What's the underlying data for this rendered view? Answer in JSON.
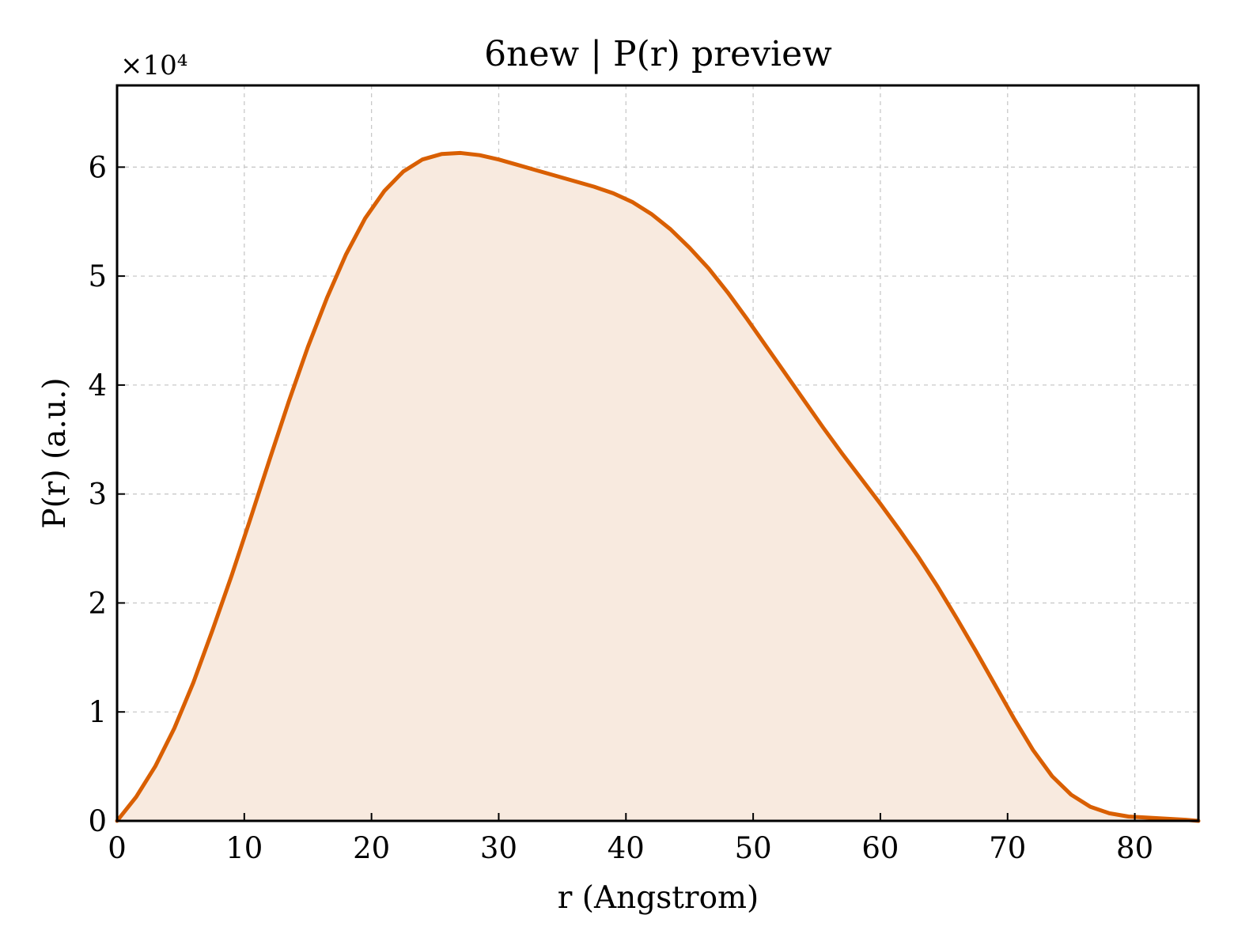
{
  "chart_data": {
    "type": "area",
    "title": "6new | P(r) preview",
    "xlabel": "r (Angstrom)",
    "ylabel": "P(r) (a.u.)",
    "y_exponent_label": "×10⁴",
    "xlim": [
      0,
      85
    ],
    "ylim": [
      0,
      67500
    ],
    "xticks": [
      0,
      10,
      20,
      30,
      40,
      50,
      60,
      70,
      80
    ],
    "yticks": [
      0,
      10000,
      20000,
      30000,
      40000,
      50000,
      60000
    ],
    "ytick_labels": [
      "0",
      "1",
      "2",
      "3",
      "4",
      "5",
      "6"
    ],
    "grid": true,
    "series": [
      {
        "color": "#d95f02",
        "fill_color": "#f8eadf",
        "x": [
          0,
          1.5,
          3,
          4.5,
          6,
          7.5,
          9,
          10.5,
          12,
          13.5,
          15,
          16.5,
          18,
          19.5,
          21,
          22.5,
          24,
          25.5,
          27,
          28.5,
          30,
          31.5,
          33,
          34.5,
          36,
          37.5,
          39,
          40.5,
          42,
          43.5,
          45,
          46.5,
          48,
          49.5,
          51,
          52.5,
          54,
          55.5,
          57,
          58.5,
          60,
          61.5,
          63,
          64.5,
          66,
          67.5,
          69,
          70.5,
          72,
          73.5,
          75,
          76.5,
          78,
          79.5,
          81,
          82.5,
          84,
          85
        ],
        "y": [
          0,
          2200,
          5000,
          8500,
          12700,
          17500,
          22500,
          27800,
          33200,
          38500,
          43500,
          48000,
          52000,
          55300,
          57800,
          59600,
          60700,
          61200,
          61300,
          61100,
          60700,
          60200,
          59700,
          59200,
          58700,
          58200,
          57600,
          56800,
          55700,
          54300,
          52600,
          50700,
          48500,
          46100,
          43600,
          41100,
          38600,
          36100,
          33700,
          31400,
          29100,
          26700,
          24200,
          21500,
          18600,
          15600,
          12500,
          9400,
          6500,
          4100,
          2400,
          1300,
          700,
          400,
          300,
          200,
          100,
          0
        ]
      }
    ]
  }
}
